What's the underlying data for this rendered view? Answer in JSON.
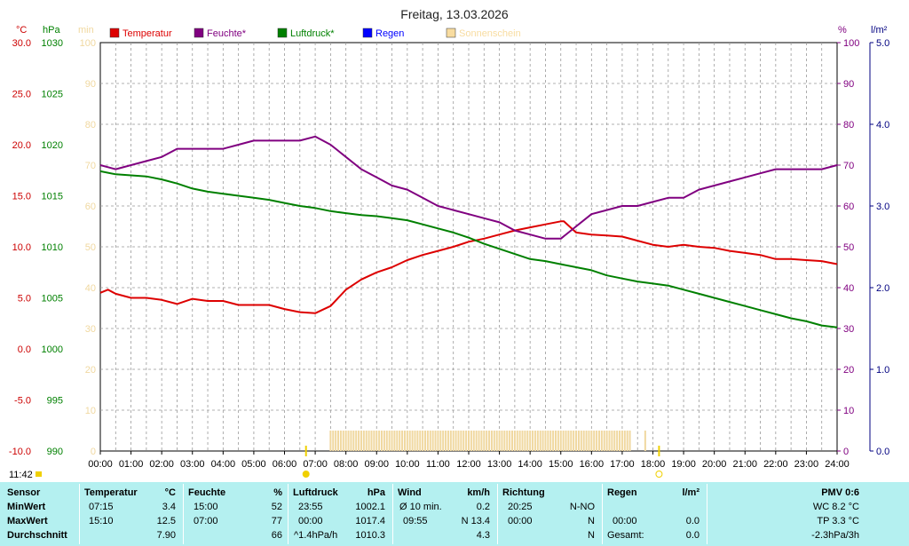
{
  "chart_data": {
    "type": "line",
    "title": "Freitag, 13.03.2026",
    "time_label": "11:42",
    "x_ticks": [
      "00:00",
      "01:00",
      "02:00",
      "03:00",
      "04:00",
      "05:00",
      "06:00",
      "07:00",
      "08:00",
      "09:00",
      "10:00",
      "11:00",
      "12:00",
      "13:00",
      "14:00",
      "15:00",
      "16:00",
      "17:00",
      "18:00",
      "19:00",
      "20:00",
      "21:00",
      "22:00",
      "23:00",
      "24:00"
    ],
    "axes": {
      "temperature": {
        "unit": "°C",
        "ylim": [
          -10,
          30
        ],
        "ticks": [
          "30.0",
          "25.0",
          "20.0",
          "15.0",
          "10.0",
          "5.0",
          "0.0",
          "-5.0",
          "-10.0"
        ],
        "color": "#cc0000"
      },
      "pressure": {
        "unit": "hPa",
        "ylim": [
          990,
          1030
        ],
        "ticks": [
          "1030",
          "1025",
          "1020",
          "1015",
          "1010",
          "1005",
          "1000",
          "995",
          "990"
        ],
        "color": "#008000"
      },
      "sunshine": {
        "unit": "min",
        "ylim": [
          0,
          100
        ],
        "ticks": [
          "100",
          "90",
          "80",
          "70",
          "60",
          "50",
          "40",
          "30",
          "20",
          "10",
          "0"
        ],
        "color": "#f0d8a0"
      },
      "humidity": {
        "unit": "%",
        "ylim": [
          0,
          100
        ],
        "ticks": [
          "100",
          "90",
          "80",
          "70",
          "60",
          "50",
          "40",
          "30",
          "20",
          "10",
          "0"
        ],
        "color": "#800080"
      },
      "rain": {
        "unit": "l/m²",
        "ylim": [
          0,
          5
        ],
        "ticks": [
          "5.0",
          "4.0",
          "3.0",
          "2.0",
          "1.0",
          "0.0"
        ],
        "color": "#000080"
      }
    },
    "legend": [
      {
        "label": "Temperatur",
        "color": "#dd0000"
      },
      {
        "label": "Feuchte*",
        "color": "#800080"
      },
      {
        "label": "Luftdruck*",
        "color": "#008000"
      },
      {
        "label": "Regen",
        "color": "#0000ff"
      },
      {
        "label": "Sonnenschein",
        "color": "#f8dca0"
      }
    ],
    "series": [
      {
        "name": "Temperatur",
        "axis": "temperature",
        "color": "#dd0000",
        "x": [
          0,
          0.25,
          0.5,
          1,
          1.5,
          2,
          2.5,
          3,
          3.5,
          4,
          4.5,
          5,
          5.5,
          6,
          6.5,
          7,
          7.5,
          8,
          8.5,
          9,
          9.5,
          10,
          10.5,
          11,
          11.5,
          12,
          12.5,
          13,
          13.5,
          14,
          14.5,
          15,
          15.1,
          15.5,
          16,
          16.5,
          17,
          17.5,
          18,
          18.5,
          19,
          19.5,
          20,
          20.5,
          21,
          21.5,
          22,
          22.5,
          23,
          23.5,
          24
        ],
        "y": [
          5.5,
          5.8,
          5.4,
          5.0,
          5.0,
          4.8,
          4.4,
          4.9,
          4.7,
          4.7,
          4.3,
          4.3,
          4.3,
          3.9,
          3.6,
          3.5,
          4.2,
          5.8,
          6.8,
          7.5,
          8.0,
          8.7,
          9.2,
          9.6,
          10.0,
          10.5,
          10.8,
          11.2,
          11.6,
          11.9,
          12.2,
          12.5,
          12.5,
          11.4,
          11.2,
          11.1,
          11.0,
          10.6,
          10.2,
          10.0,
          10.2,
          10.0,
          9.9,
          9.6,
          9.4,
          9.2,
          8.8,
          8.8,
          8.7,
          8.6,
          8.3
        ]
      },
      {
        "name": "Feuchte*",
        "axis": "humidity",
        "color": "#800080",
        "x": [
          0,
          0.5,
          1,
          1.5,
          2,
          2.5,
          3,
          3.5,
          4,
          4.5,
          5,
          5.5,
          6,
          6.5,
          7,
          7.5,
          8,
          8.5,
          9,
          9.5,
          10,
          10.5,
          11,
          11.5,
          12,
          12.5,
          13,
          13.5,
          14,
          14.5,
          15,
          15.5,
          16,
          16.5,
          17,
          17.5,
          18,
          18.5,
          19,
          19.5,
          20,
          20.5,
          21,
          21.5,
          22,
          22.5,
          23,
          23.5,
          24
        ],
        "y": [
          70,
          69,
          70,
          71,
          72,
          74,
          74,
          74,
          74,
          75,
          76,
          76,
          76,
          76,
          77,
          75,
          72,
          69,
          67,
          65,
          64,
          62,
          60,
          59,
          58,
          57,
          56,
          54,
          53,
          52,
          52,
          55,
          58,
          59,
          60,
          60,
          61,
          62,
          62,
          64,
          65,
          66,
          67,
          68,
          69,
          69,
          69,
          69,
          70
        ]
      },
      {
        "name": "Luftdruck*",
        "axis": "pressure",
        "color": "#008000",
        "x": [
          0,
          0.5,
          1,
          1.5,
          2,
          2.5,
          3,
          3.5,
          4,
          4.5,
          5,
          5.5,
          6,
          6.5,
          7,
          7.5,
          8,
          8.5,
          9,
          9.5,
          10,
          10.5,
          11,
          11.5,
          12,
          12.5,
          13,
          13.5,
          14,
          14.5,
          15,
          15.5,
          16,
          16.5,
          17,
          17.5,
          18,
          18.5,
          19,
          19.5,
          20,
          20.5,
          21,
          21.5,
          22,
          22.5,
          23,
          23.5,
          24
        ],
        "y": [
          1017.4,
          1017.1,
          1017.0,
          1016.9,
          1016.6,
          1016.2,
          1015.7,
          1015.4,
          1015.2,
          1015.0,
          1014.8,
          1014.6,
          1014.3,
          1014.0,
          1013.8,
          1013.5,
          1013.3,
          1013.1,
          1013.0,
          1012.8,
          1012.6,
          1012.2,
          1011.8,
          1011.4,
          1010.9,
          1010.3,
          1009.8,
          1009.3,
          1008.8,
          1008.6,
          1008.3,
          1008.0,
          1007.7,
          1007.2,
          1006.9,
          1006.6,
          1006.4,
          1006.2,
          1005.8,
          1005.4,
          1005.0,
          1004.6,
          1004.2,
          1003.8,
          1003.4,
          1003.0,
          1002.7,
          1002.3,
          1002.1
        ]
      }
    ],
    "sunshine_bars": {
      "start": 7.5,
      "end": 17.25,
      "extra": 17.75,
      "value": 5
    },
    "markers": [
      {
        "name": "sunrise",
        "x": 6.7
      },
      {
        "name": "sunset",
        "x": 18.2
      }
    ],
    "now": 11.7
  },
  "stats": {
    "sensor": {
      "header": "Sensor",
      "min": "MinWert",
      "max": "MaxWert",
      "avg": "Durchschnitt"
    },
    "temperature": {
      "header": "Temperatur",
      "unit": "°C",
      "min_time": "07:15",
      "min_val": "3.4",
      "max_time": "15:10",
      "max_val": "12.5",
      "avg_val": "7.90"
    },
    "humidity": {
      "header": "Feuchte",
      "unit": "%",
      "min_time": "15:00",
      "min_val": "52",
      "max_time": "07:00",
      "max_val": "77",
      "avg_val": "66"
    },
    "pressure": {
      "header": "Luftdruck",
      "unit": "hPa",
      "min_time": "23:55",
      "min_val": "1002.1",
      "max_time": "00:00",
      "max_val": "1017.4",
      "trend": "^1.4hPa/h",
      "avg_val": "1010.3"
    },
    "wind": {
      "header": "Wind",
      "unit": "km/h",
      "min_label": "Ø 10 min.",
      "min_val": "0.2",
      "max_time": "09:55",
      "max_val": "N 13.4",
      "avg_val": "4.3"
    },
    "direction": {
      "header": "Richtung",
      "min_time": "20:25",
      "min_val": "N-NO",
      "max_time": "00:00",
      "max_val": "N",
      "avg_val": "N"
    },
    "rain": {
      "header": "Regen",
      "unit": "l/m²",
      "max_time": "00:00",
      "max_val": "0.0",
      "total_label": "Gesamt:",
      "total_val": "0.0"
    },
    "pmv": {
      "header": "PMV 0:6",
      "wc": "WC 8.2 °C",
      "tp": "TP 3.3 °C",
      "trend": "-2.3hPa/3h"
    }
  }
}
